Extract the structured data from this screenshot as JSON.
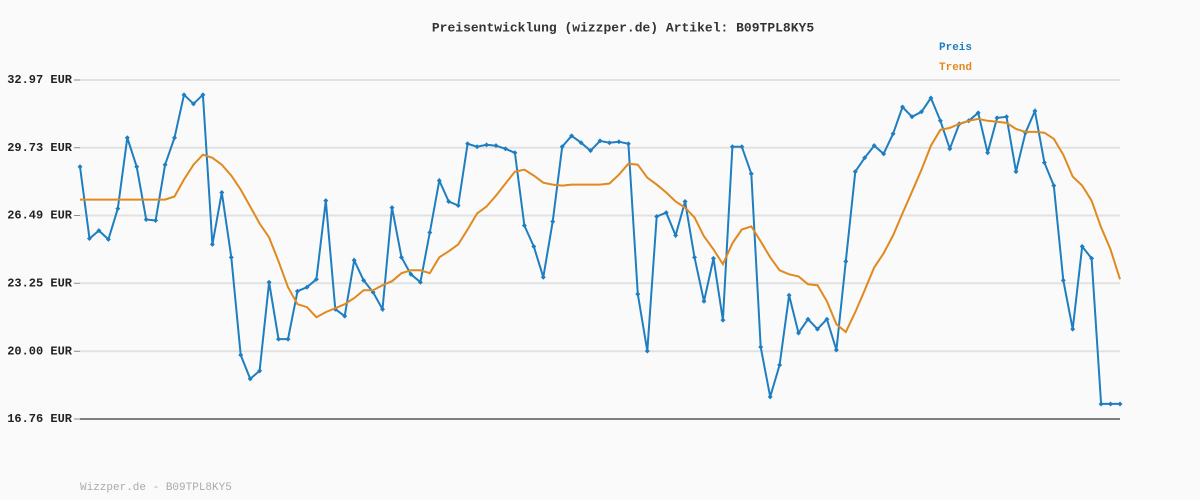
{
  "chart_data": {
    "type": "line",
    "title": "Preisentwicklung (wizzper.de) Artikel: B09TPL8KY5",
    "footer": "Wizzper.de - B09TPL8KY5",
    "categories": [
      null,
      null,
      null,
      null,
      null,
      null,
      null,
      null,
      null,
      null,
      null,
      null,
      null,
      null,
      null,
      null,
      null,
      null,
      null,
      null,
      null,
      null,
      null,
      null,
      null,
      null,
      null,
      null,
      null,
      null,
      null,
      null,
      null,
      null,
      null,
      null,
      null,
      null,
      null,
      null,
      null,
      null,
      null,
      null,
      null,
      null,
      null,
      null,
      null,
      null,
      null,
      null,
      null,
      null,
      null,
      null,
      null,
      null,
      null,
      null,
      null,
      null,
      null,
      null,
      null,
      null,
      null,
      null,
      null,
      null,
      null,
      null,
      null,
      null,
      null,
      null,
      null,
      null,
      null,
      null,
      null,
      null,
      null,
      null,
      null,
      null,
      null,
      null,
      null,
      null,
      null,
      null,
      null,
      null,
      null,
      null,
      null,
      null,
      null,
      null,
      null,
      null,
      null,
      null,
      null,
      null,
      null,
      null,
      null,
      null,
      null
    ],
    "series": [
      {
        "name": "Preis",
        "color": "#1f7ec0",
        "markers": true,
        "values": [
          28.82,
          25.39,
          25.77,
          25.35,
          26.82,
          30.21,
          28.82,
          26.3,
          26.25,
          28.92,
          30.21,
          32.26,
          31.83,
          32.26,
          25.11,
          27.59,
          24.49,
          19.82,
          18.68,
          19.06,
          23.3,
          20.58,
          20.58,
          22.87,
          23.06,
          23.44,
          27.2,
          22.01,
          21.68,
          24.35,
          23.39,
          22.82,
          22.01,
          26.87,
          24.49,
          23.68,
          23.3,
          25.68,
          28.16,
          27.16,
          26.97,
          29.92,
          29.78,
          29.87,
          29.83,
          29.68,
          29.49,
          26.01,
          25.01,
          23.54,
          26.2,
          29.78,
          30.3,
          29.97,
          29.59,
          30.06,
          29.97,
          30.02,
          29.92,
          22.73,
          20.01,
          26.44,
          26.63,
          25.54,
          27.16,
          24.49,
          22.39,
          24.44,
          21.49,
          29.78,
          29.78,
          28.49,
          20.2,
          17.82,
          19.34,
          22.68,
          20.87,
          21.53,
          21.06,
          21.53,
          20.06,
          24.3,
          28.59,
          29.25,
          29.83,
          29.44,
          30.4,
          31.68,
          31.21,
          31.45,
          32.11,
          31.02,
          29.68,
          30.87,
          31.02,
          31.4,
          29.49,
          31.16,
          31.21,
          28.59,
          30.45,
          31.49,
          29.02,
          27.92,
          23.39,
          21.06,
          25.01,
          24.44,
          17.48,
          17.48,
          17.48
        ]
      },
      {
        "name": "Trend",
        "color": "#e0891f",
        "markers": false,
        "values": [
          27.25,
          27.25,
          27.25,
          27.25,
          27.25,
          27.25,
          27.25,
          27.25,
          27.25,
          27.25,
          27.4,
          28.21,
          28.92,
          29.4,
          29.25,
          28.92,
          28.4,
          27.73,
          26.92,
          26.11,
          25.44,
          24.3,
          23.06,
          22.25,
          22.11,
          21.63,
          21.87,
          22.06,
          22.25,
          22.54,
          22.92,
          22.92,
          23.16,
          23.35,
          23.73,
          23.87,
          23.87,
          23.73,
          24.49,
          24.78,
          25.11,
          25.82,
          26.59,
          26.92,
          27.44,
          28.02,
          28.59,
          28.68,
          28.4,
          28.06,
          27.97,
          27.92,
          27.97,
          27.97,
          27.97,
          27.97,
          28.02,
          28.44,
          28.97,
          28.92,
          28.3,
          27.97,
          27.59,
          27.16,
          26.87,
          26.4,
          25.49,
          24.87,
          24.16,
          25.16,
          25.82,
          25.97,
          25.25,
          24.49,
          23.87,
          23.68,
          23.58,
          23.2,
          23.16,
          22.39,
          21.3,
          20.92,
          21.87,
          22.92,
          24.01,
          24.68,
          25.54,
          26.59,
          27.63,
          28.68,
          29.83,
          30.59,
          30.68,
          30.87,
          31.02,
          31.11,
          31.02,
          30.97,
          30.92,
          30.63,
          30.49,
          30.49,
          30.45,
          30.16,
          29.4,
          28.35,
          27.92,
          27.2,
          25.92,
          24.87,
          23.44
        ]
      }
    ],
    "ylim": [
      16.76,
      32.97
    ],
    "yticks": [
      {
        "value": 16.76,
        "label": "16.76 EUR"
      },
      {
        "value": 20.0,
        "label": "20.00 EUR"
      },
      {
        "value": 23.25,
        "label": "23.25 EUR"
      },
      {
        "value": 26.49,
        "label": "26.49 EUR"
      },
      {
        "value": 29.73,
        "label": "29.73 EUR"
      },
      {
        "value": 32.97,
        "label": "32.97 EUR"
      }
    ],
    "grid": true
  }
}
